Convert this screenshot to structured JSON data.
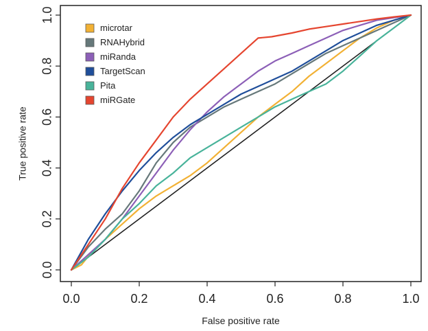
{
  "chart_data": {
    "type": "line",
    "title": "",
    "xlabel": "False positive rate",
    "ylabel": "True positive rate",
    "xlim": [
      0,
      1
    ],
    "ylim": [
      0,
      1
    ],
    "grid": false,
    "legend": {
      "placement": "top-left"
    },
    "x_ticks": [
      "0.0",
      "0.2",
      "0.4",
      "0.6",
      "0.8",
      "1.0"
    ],
    "y_ticks": [
      "0.0",
      "0.2",
      "0.4",
      "0.6",
      "0.8",
      "1.0"
    ],
    "reference_line": {
      "x": [
        0,
        1
      ],
      "y": [
        0,
        1
      ],
      "color": "#222222"
    },
    "series": [
      {
        "name": "microtar",
        "color": "#f2b134",
        "x": [
          0,
          0.03,
          0.06,
          0.1,
          0.15,
          0.2,
          0.25,
          0.3,
          0.35,
          0.4,
          0.45,
          0.5,
          0.55,
          0.6,
          0.65,
          0.7,
          0.75,
          0.8,
          0.85,
          0.9,
          0.95,
          1.0
        ],
        "y": [
          0,
          0.02,
          0.07,
          0.12,
          0.18,
          0.24,
          0.29,
          0.33,
          0.37,
          0.42,
          0.48,
          0.54,
          0.6,
          0.65,
          0.7,
          0.76,
          0.81,
          0.86,
          0.91,
          0.95,
          0.98,
          1.0
        ]
      },
      {
        "name": "RNAHybrid",
        "color": "#66787a",
        "x": [
          0,
          0.05,
          0.1,
          0.15,
          0.2,
          0.25,
          0.3,
          0.35,
          0.4,
          0.45,
          0.5,
          0.55,
          0.6,
          0.65,
          0.7,
          0.75,
          0.8,
          0.85,
          0.9,
          0.95,
          1.0
        ],
        "y": [
          0,
          0.09,
          0.16,
          0.22,
          0.31,
          0.42,
          0.5,
          0.56,
          0.6,
          0.64,
          0.67,
          0.7,
          0.73,
          0.77,
          0.81,
          0.85,
          0.88,
          0.91,
          0.94,
          0.97,
          1.0
        ]
      },
      {
        "name": "miRanda",
        "color": "#8c5fb7",
        "x": [
          0,
          0.05,
          0.1,
          0.15,
          0.2,
          0.25,
          0.3,
          0.35,
          0.4,
          0.45,
          0.5,
          0.55,
          0.6,
          0.65,
          0.7,
          0.75,
          0.8,
          0.85,
          0.9,
          0.95,
          1.0
        ],
        "y": [
          0,
          0.06,
          0.12,
          0.2,
          0.29,
          0.38,
          0.47,
          0.55,
          0.62,
          0.68,
          0.73,
          0.78,
          0.82,
          0.85,
          0.88,
          0.91,
          0.94,
          0.96,
          0.98,
          0.99,
          1.0
        ]
      },
      {
        "name": "TargetScan",
        "color": "#1f4e9a",
        "x": [
          0,
          0.05,
          0.1,
          0.15,
          0.2,
          0.25,
          0.3,
          0.35,
          0.4,
          0.45,
          0.5,
          0.55,
          0.6,
          0.65,
          0.7,
          0.75,
          0.8,
          0.85,
          0.9,
          0.95,
          1.0
        ],
        "y": [
          0,
          0.12,
          0.22,
          0.31,
          0.39,
          0.46,
          0.52,
          0.57,
          0.61,
          0.65,
          0.69,
          0.72,
          0.75,
          0.78,
          0.82,
          0.86,
          0.9,
          0.93,
          0.96,
          0.98,
          1.0
        ]
      },
      {
        "name": "Pita",
        "color": "#48b39a",
        "x": [
          0,
          0.05,
          0.1,
          0.15,
          0.2,
          0.25,
          0.3,
          0.35,
          0.4,
          0.45,
          0.5,
          0.55,
          0.6,
          0.65,
          0.7,
          0.75,
          0.8,
          0.85,
          0.9,
          0.95,
          1.0
        ],
        "y": [
          0,
          0.05,
          0.12,
          0.2,
          0.26,
          0.33,
          0.38,
          0.44,
          0.48,
          0.52,
          0.56,
          0.6,
          0.64,
          0.67,
          0.7,
          0.73,
          0.78,
          0.84,
          0.9,
          0.95,
          1.0
        ]
      },
      {
        "name": "miRGate",
        "color": "#e5452f",
        "x": [
          0,
          0.05,
          0.1,
          0.15,
          0.2,
          0.25,
          0.3,
          0.35,
          0.4,
          0.45,
          0.5,
          0.55,
          0.59,
          0.65,
          0.7,
          0.75,
          0.8,
          0.85,
          0.9,
          0.95,
          1.0
        ],
        "y": [
          0,
          0.1,
          0.2,
          0.32,
          0.42,
          0.51,
          0.6,
          0.67,
          0.73,
          0.79,
          0.85,
          0.91,
          0.915,
          0.93,
          0.945,
          0.955,
          0.965,
          0.975,
          0.985,
          0.993,
          1.0
        ]
      }
    ]
  }
}
